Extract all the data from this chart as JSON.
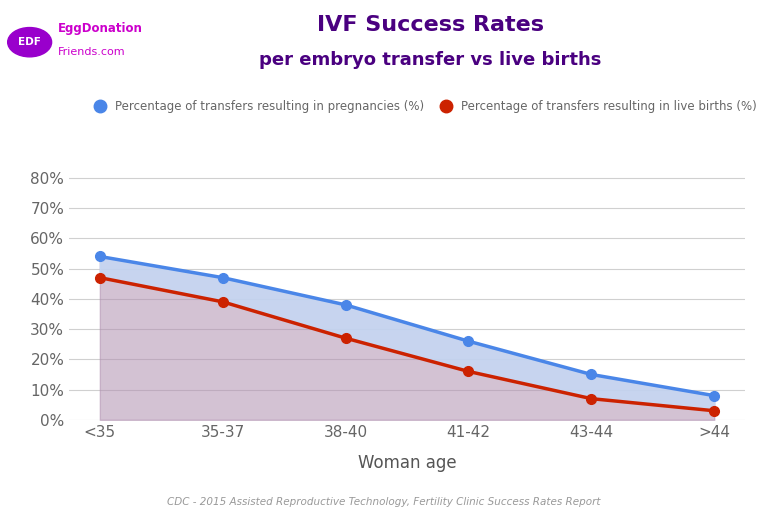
{
  "categories": [
    "<35",
    "35-37",
    "38-40",
    "41-42",
    "43-44",
    ">44"
  ],
  "pregnancies": [
    54,
    47,
    38,
    26,
    15,
    8
  ],
  "live_births": [
    47,
    39,
    27,
    16,
    7,
    3
  ],
  "title_line1": "IVF Success Rates",
  "title_line2": "per embryo transfer vs live births",
  "xlabel": "Woman age",
  "yticks": [
    0,
    10,
    20,
    30,
    40,
    50,
    60,
    70,
    80
  ],
  "ylim": [
    0,
    88
  ],
  "blue_color": "#4a86e8",
  "blue_fill": "#c5d8f5",
  "red_color": "#cc2200",
  "red_fill_color": "#c9a0b4",
  "legend_preg": "Percentage of transfers resulting in pregnancies (%)",
  "legend_birth": "Percentage of transfers resulting in live births (%)",
  "source_text": "CDC - 2015 Assisted Reproductive Technology, Fertility Clinic Success Rates Report",
  "title_color": "#4a0080",
  "bg_color": "#ffffff",
  "grid_color": "#d0d0d0",
  "tick_color": "#666666",
  "source_color": "#999999",
  "logo_circle_color": "#9900cc",
  "logo_text_color": "#cc00cc",
  "legend_dot_blue": "#4a86e8",
  "legend_dot_red": "#cc2200"
}
